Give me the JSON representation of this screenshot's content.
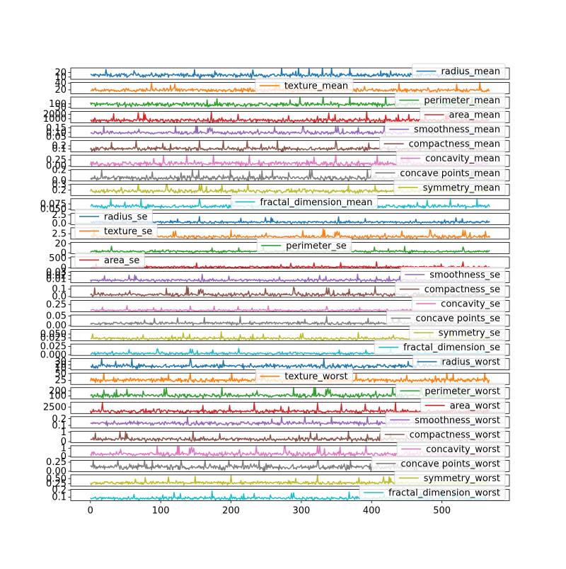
{
  "chart_data": {
    "type": "line",
    "subplots": "stacked, shared x-axis",
    "x": {
      "ticks": [
        0,
        100,
        200,
        300,
        400,
        500
      ],
      "tick_labels": [
        "0",
        "100",
        "200",
        "300",
        "400",
        "500"
      ],
      "range": [
        -28,
        596
      ],
      "n_points": 569
    },
    "grid": false,
    "series": [
      {
        "name": "radius_mean",
        "color": "#1f77b4",
        "ylim": [
          5,
          30
        ],
        "ticks": [
          10,
          20
        ],
        "tick_labels": [
          "10",
          "20"
        ],
        "base": 14,
        "spread": 3.5,
        "legend": "right"
      },
      {
        "name": "texture_mean",
        "color": "#ff7f0e",
        "ylim": [
          8,
          42
        ],
        "ticks": [
          20,
          40
        ],
        "tick_labels": [
          "20",
          "40"
        ],
        "base": 19,
        "spread": 4.3,
        "legend": "center"
      },
      {
        "name": "perimeter_mean",
        "color": "#2ca02c",
        "ylim": [
          35,
          200
        ],
        "ticks": [
          50,
          100
        ],
        "tick_labels": [
          "50",
          "100"
        ],
        "base": 92,
        "spread": 24,
        "legend": "right"
      },
      {
        "name": "area_mean",
        "color": "#d62728",
        "ylim": [
          100,
          2600
        ],
        "ticks": [
          1000,
          2000
        ],
        "tick_labels": [
          "1000",
          "2000"
        ],
        "base": 655,
        "spread": 350,
        "legend": "right"
      },
      {
        "name": "smoothness_mean",
        "color": "#9467bd",
        "ylim": [
          0.045,
          0.17
        ],
        "ticks": [
          0.05,
          0.1,
          0.15
        ],
        "tick_labels": [
          "0.05",
          "0.10",
          "0.15"
        ],
        "base": 0.096,
        "spread": 0.014,
        "legend": "right"
      },
      {
        "name": "compactness_mean",
        "color": "#8c564b",
        "ylim": [
          0.0,
          0.37
        ],
        "ticks": [
          0.1,
          0.2
        ],
        "tick_labels": [
          "0.1",
          "0.2"
        ],
        "base": 0.104,
        "spread": 0.053,
        "legend": "right"
      },
      {
        "name": "concavity_mean",
        "color": "#e377c2",
        "ylim": [
          -0.03,
          0.45
        ],
        "ticks": [
          0.0,
          0.25
        ],
        "tick_labels": [
          "0.00",
          "0.25"
        ],
        "base": 0.089,
        "spread": 0.08,
        "legend": "right"
      },
      {
        "name": "concave points_mean",
        "color": "#7f7f7f",
        "ylim": [
          -0.01,
          0.21
        ],
        "ticks": [
          0.0,
          0.2
        ],
        "tick_labels": [
          "0.0",
          "0.2"
        ],
        "base": 0.049,
        "spread": 0.039,
        "legend": "right"
      },
      {
        "name": "symmetry_mean",
        "color": "#bcbd22",
        "ylim": [
          0.1,
          0.31
        ],
        "ticks": [
          0.2,
          0.3
        ],
        "tick_labels": [
          "0.2",
          "0.3"
        ],
        "base": 0.181,
        "spread": 0.027,
        "legend": "right"
      },
      {
        "name": "fractal_dimension_mean",
        "color": "#17becf",
        "ylim": [
          0.045,
          0.1
        ],
        "ticks": [
          0.05,
          0.075
        ],
        "tick_labels": [
          "0.050",
          "0.075"
        ],
        "base": 0.063,
        "spread": 0.007,
        "legend": "center"
      },
      {
        "name": "radius_se",
        "color": "#1f77b4",
        "ylim": [
          -0.3,
          3.0
        ],
        "ticks": [
          0.0,
          2.5
        ],
        "tick_labels": [
          "0.0",
          "2.5"
        ],
        "base": 0.405,
        "spread": 0.277,
        "legend": "left"
      },
      {
        "name": "texture_se",
        "color": "#ff7f0e",
        "ylim": [
          0.2,
          5.0
        ],
        "ticks": [
          2.5
        ],
        "tick_labels": [
          "2.5"
        ],
        "base": 1.22,
        "spread": 0.55,
        "legend": "left"
      },
      {
        "name": "perimeter_se",
        "color": "#2ca02c",
        "ylim": [
          -2,
          23
        ],
        "ticks": [
          0,
          20
        ],
        "tick_labels": [
          "0",
          "20"
        ],
        "base": 2.87,
        "spread": 2.02,
        "legend": "center"
      },
      {
        "name": "area_se",
        "color": "#d62728",
        "ylim": [
          -20,
          560
        ],
        "ticks": [
          0,
          500
        ],
        "tick_labels": [
          "0",
          "500"
        ],
        "base": 40,
        "spread": 45,
        "legend": "left"
      },
      {
        "name": "smoothness_se",
        "color": "#9467bd",
        "ylim": [
          0.0,
          0.032
        ],
        "ticks": [
          0.01,
          0.02,
          0.03
        ],
        "tick_labels": [
          "0.01",
          "0.02",
          "0.03"
        ],
        "base": 0.007,
        "spread": 0.003,
        "legend": "right"
      },
      {
        "name": "compactness_se",
        "color": "#8c564b",
        "ylim": [
          -0.01,
          0.14
        ],
        "ticks": [
          0.0,
          0.1
        ],
        "tick_labels": [
          "0.0",
          "0.1"
        ],
        "base": 0.025,
        "spread": 0.018,
        "legend": "right"
      },
      {
        "name": "concavity_se",
        "color": "#e377c2",
        "ylim": [
          -0.02,
          0.4
        ],
        "ticks": [
          0.25
        ],
        "tick_labels": [
          "0.25"
        ],
        "base": 0.032,
        "spread": 0.03,
        "legend": "right"
      },
      {
        "name": "concave points_se",
        "color": "#7f7f7f",
        "ylim": [
          -0.004,
          0.055
        ],
        "ticks": [
          0.0,
          0.05
        ],
        "tick_labels": [
          "0.00",
          "0.05"
        ],
        "base": 0.0118,
        "spread": 0.006,
        "legend": "right"
      },
      {
        "name": "symmetry_se",
        "color": "#bcbd22",
        "ylim": [
          0.005,
          0.08
        ],
        "ticks": [
          0.025,
          0.05
        ],
        "tick_labels": [
          "0.025",
          "0.050"
        ],
        "base": 0.0205,
        "spread": 0.008,
        "legend": "right"
      },
      {
        "name": "fractal_dimension_se",
        "color": "#17becf",
        "ylim": [
          -0.002,
          0.032
        ],
        "ticks": [
          0.0,
          0.025
        ],
        "tick_labels": [
          "0.000",
          "0.025"
        ],
        "base": 0.0038,
        "spread": 0.0026,
        "legend": "right"
      },
      {
        "name": "radius_worst",
        "color": "#1f77b4",
        "ylim": [
          5,
          38
        ],
        "ticks": [
          10,
          20,
          30
        ],
        "tick_labels": [
          "10",
          "20",
          "30"
        ],
        "base": 16.3,
        "spread": 4.8,
        "legend": "right"
      },
      {
        "name": "texture_worst",
        "color": "#ff7f0e",
        "ylim": [
          10,
          52
        ],
        "ticks": [
          25,
          50
        ],
        "tick_labels": [
          "25",
          "50"
        ],
        "base": 25.7,
        "spread": 6.1,
        "legend": "center"
      },
      {
        "name": "perimeter_worst",
        "color": "#2ca02c",
        "ylim": [
          40,
          260
        ],
        "ticks": [
          100,
          200
        ],
        "tick_labels": [
          "100",
          "200"
        ],
        "base": 107,
        "spread": 33,
        "legend": "right"
      },
      {
        "name": "area_worst",
        "color": "#d62728",
        "ylim": [
          100,
          4300
        ],
        "ticks": [
          2500
        ],
        "tick_labels": [
          "2500"
        ],
        "base": 880,
        "spread": 569,
        "legend": "right"
      },
      {
        "name": "smoothness_worst",
        "color": "#9467bd",
        "ylim": [
          0.06,
          0.23
        ],
        "ticks": [
          0.1,
          0.2
        ],
        "tick_labels": [
          "0.1",
          "0.2"
        ],
        "base": 0.132,
        "spread": 0.023,
        "legend": "right"
      },
      {
        "name": "compactness_worst",
        "color": "#8c564b",
        "ylim": [
          -0.1,
          1.1
        ],
        "ticks": [
          0,
          1
        ],
        "tick_labels": [
          "0",
          "1"
        ],
        "base": 0.254,
        "spread": 0.157,
        "legend": "right"
      },
      {
        "name": "concavity_worst",
        "color": "#e377c2",
        "ylim": [
          -0.1,
          1.3
        ],
        "ticks": [
          0,
          1
        ],
        "tick_labels": [
          "0",
          "1"
        ],
        "base": 0.272,
        "spread": 0.208,
        "legend": "right"
      },
      {
        "name": "concave points_worst",
        "color": "#7f7f7f",
        "ylim": [
          -0.01,
          0.3
        ],
        "ticks": [
          0.0,
          0.25
        ],
        "tick_labels": [
          "0.00",
          "0.25"
        ],
        "base": 0.115,
        "spread": 0.066,
        "legend": "right"
      },
      {
        "name": "symmetry_worst",
        "color": "#bcbd22",
        "ylim": [
          0.13,
          0.68
        ],
        "ticks": [
          0.25,
          0.5
        ],
        "tick_labels": [
          "0.25",
          "0.50"
        ],
        "base": 0.29,
        "spread": 0.062,
        "legend": "right"
      },
      {
        "name": "fractal_dimension_worst",
        "color": "#17becf",
        "ylim": [
          0.05,
          0.21
        ],
        "ticks": [
          0.1,
          0.2
        ],
        "tick_labels": [
          "0.1",
          "0.2"
        ],
        "base": 0.084,
        "spread": 0.018,
        "legend": "right"
      }
    ]
  }
}
